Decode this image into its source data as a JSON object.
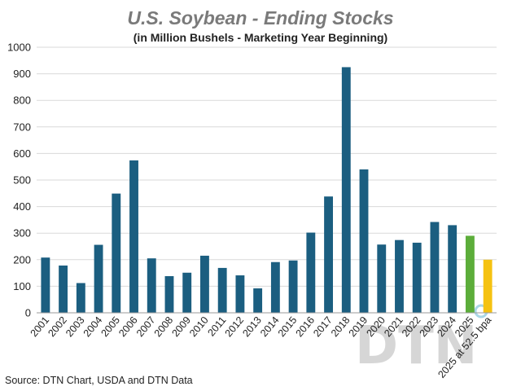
{
  "chart_data": {
    "type": "bar",
    "title": "U.S. Soybean - Ending Stocks",
    "subtitle": "(in Million Bushels - Marketing Year Beginning)",
    "xlabel": "",
    "ylabel": "",
    "ylim": [
      0,
      1000
    ],
    "yticks": [
      "0",
      "100",
      "200",
      "300",
      "400",
      "500",
      "600",
      "700",
      "800",
      "900",
      "1000"
    ],
    "grid": true,
    "categories": [
      "2001",
      "2002",
      "2003",
      "2004",
      "2005",
      "2006",
      "2007",
      "2008",
      "2009",
      "2010",
      "2011",
      "2012",
      "2013",
      "2014",
      "2015",
      "2016",
      "2017",
      "2018",
      "2019",
      "2020",
      "2021",
      "2022",
      "2023",
      "2024",
      "2025",
      "2025 at 52.5 bpa"
    ],
    "values": [
      208,
      178,
      112,
      256,
      449,
      574,
      205,
      138,
      151,
      215,
      169,
      141,
      92,
      191,
      197,
      302,
      438,
      925,
      540,
      257,
      274,
      264,
      342,
      330,
      290,
      200
    ],
    "colors": [
      "#1b5e80",
      "#1b5e80",
      "#1b5e80",
      "#1b5e80",
      "#1b5e80",
      "#1b5e80",
      "#1b5e80",
      "#1b5e80",
      "#1b5e80",
      "#1b5e80",
      "#1b5e80",
      "#1b5e80",
      "#1b5e80",
      "#1b5e80",
      "#1b5e80",
      "#1b5e80",
      "#1b5e80",
      "#1b5e80",
      "#1b5e80",
      "#1b5e80",
      "#1b5e80",
      "#1b5e80",
      "#1b5e80",
      "#1b5e80",
      "#5cad3a",
      "#f5c211"
    ],
    "source": "Source: DTN Chart, USDA and DTN Data",
    "watermark": "DTN"
  }
}
